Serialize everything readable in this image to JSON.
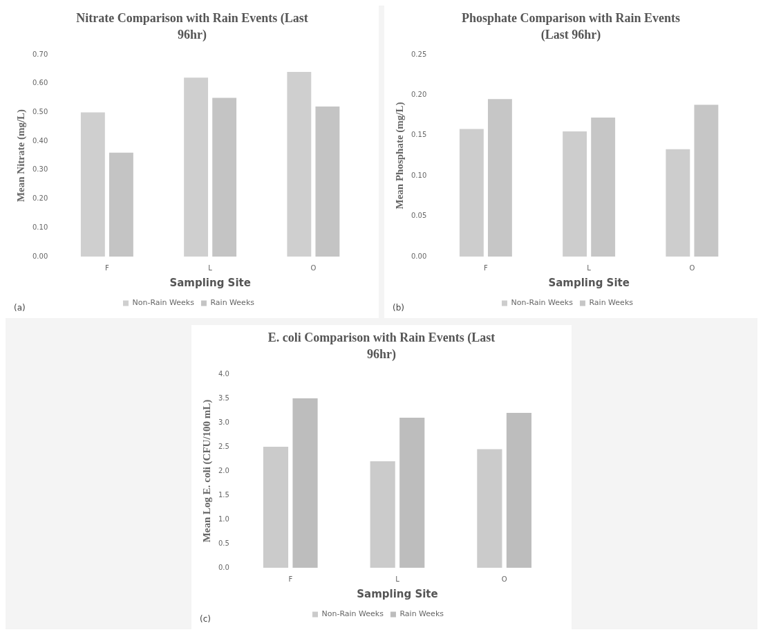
{
  "chart_data": [
    {
      "type": "bar",
      "title": "Nitrate Comparison with Rain Events (Last 96hr)",
      "xlabel": "Sampling Site",
      "ylabel": "Mean Nitrate (mg/L)",
      "categories": [
        "F",
        "L",
        "O"
      ],
      "series": [
        {
          "name": "Non-Rain Weeks",
          "color": "#cfcfcf",
          "values": [
            0.5,
            0.62,
            0.64
          ]
        },
        {
          "name": "Rain Weeks",
          "color": "#c4c4c4",
          "values": [
            0.36,
            0.55,
            0.52
          ]
        }
      ],
      "ylim": [
        0,
        0.7
      ],
      "yticks": [
        {
          "value": 0,
          "label": "0.00"
        },
        {
          "value": 0.1,
          "label": "0.10"
        },
        {
          "value": 0.2,
          "label": "0.20"
        },
        {
          "value": 0.3,
          "label": "0.30"
        },
        {
          "value": 0.4,
          "label": "0.40"
        },
        {
          "value": 0.5,
          "label": "0.50"
        },
        {
          "value": 0.6,
          "label": "0.60"
        },
        {
          "value": 0.7,
          "label": "0.70"
        }
      ],
      "legend": "bottom",
      "annotations": [
        "(a)"
      ]
    },
    {
      "type": "bar",
      "title": "Phosphate Comparison with Rain Events (Last 96hr)",
      "xlabel": "Sampling Site",
      "ylabel": "Mean Phosphate (mg/L)",
      "categories": [
        "F",
        "L",
        "O"
      ],
      "series": [
        {
          "name": "Non-Rain Weeks",
          "color": "#cdcdcd",
          "values": [
            0.158,
            0.155,
            0.133
          ]
        },
        {
          "name": "Rain Weeks",
          "color": "#c6c6c6",
          "values": [
            0.195,
            0.172,
            0.188
          ]
        }
      ],
      "ylim": [
        0,
        0.25
      ],
      "yticks": [
        {
          "value": 0,
          "label": "0.00"
        },
        {
          "value": 0.05,
          "label": "0.05"
        },
        {
          "value": 0.1,
          "label": "0.10"
        },
        {
          "value": 0.15,
          "label": "0.15"
        },
        {
          "value": 0.2,
          "label": "0.20"
        },
        {
          "value": 0.25,
          "label": "0.25"
        }
      ],
      "legend": "bottom",
      "annotations": [
        "(b)"
      ]
    },
    {
      "type": "bar",
      "title": "E. coli Comparison with Rain Events (Last 96hr)",
      "xlabel": "Sampling Site",
      "ylabel": "Mean Log E. coli (CFU/100 mL)",
      "categories": [
        "F",
        "L",
        "O"
      ],
      "series": [
        {
          "name": "Non-Rain Weeks",
          "color": "#cbcbcb",
          "values": [
            2.5,
            2.2,
            2.45
          ]
        },
        {
          "name": "Rain Weeks",
          "color": "#bdbdbd",
          "values": [
            3.5,
            3.1,
            3.2
          ]
        }
      ],
      "ylim": [
        0,
        4
      ],
      "yticks": [
        {
          "value": 0,
          "label": "0.0"
        },
        {
          "value": 0.5,
          "label": "0.5"
        },
        {
          "value": 1,
          "label": "1.0"
        },
        {
          "value": 1.5,
          "label": "1.5"
        },
        {
          "value": 2,
          "label": "2.0"
        },
        {
          "value": 2.5,
          "label": "2.5"
        },
        {
          "value": 3,
          "label": "3.0"
        },
        {
          "value": 3.5,
          "label": "3.5"
        },
        {
          "value": 4,
          "label": "4.0"
        }
      ],
      "legend": "bottom",
      "annotations": [
        "(c)"
      ]
    }
  ]
}
